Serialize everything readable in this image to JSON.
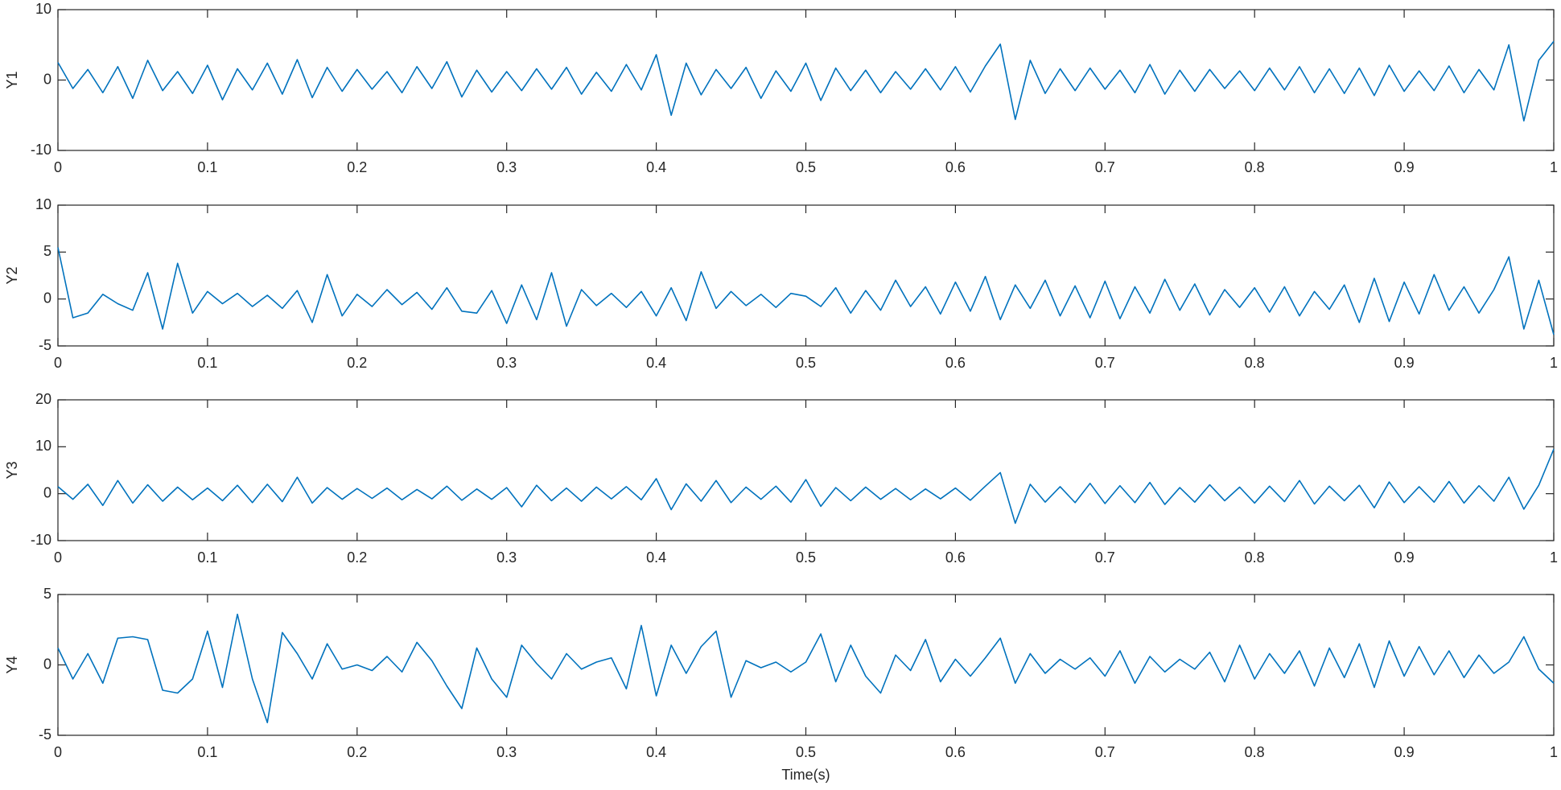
{
  "chart_data": [
    {
      "type": "line",
      "ylabel": "Y1",
      "x": [
        0,
        0.01,
        0.02,
        0.03,
        0.04,
        0.05,
        0.06,
        0.07,
        0.08,
        0.09,
        0.1,
        0.11,
        0.12,
        0.13,
        0.14,
        0.15,
        0.16,
        0.17,
        0.18,
        0.19,
        0.2,
        0.21,
        0.22,
        0.23,
        0.24,
        0.25,
        0.26,
        0.27,
        0.28,
        0.29,
        0.3,
        0.31,
        0.32,
        0.33,
        0.34,
        0.35,
        0.36,
        0.37,
        0.38,
        0.39,
        0.4,
        0.41,
        0.42,
        0.43,
        0.44,
        0.45,
        0.46,
        0.47,
        0.48,
        0.49,
        0.5,
        0.51,
        0.52,
        0.53,
        0.54,
        0.55,
        0.56,
        0.57,
        0.58,
        0.59,
        0.6,
        0.61,
        0.62,
        0.63,
        0.64,
        0.65,
        0.66,
        0.67,
        0.68,
        0.69,
        0.7,
        0.71,
        0.72,
        0.73,
        0.74,
        0.75,
        0.76,
        0.77,
        0.78,
        0.79,
        0.8,
        0.81,
        0.82,
        0.83,
        0.84,
        0.85,
        0.86,
        0.87,
        0.88,
        0.89,
        0.9,
        0.91,
        0.92,
        0.93,
        0.94,
        0.95,
        0.96,
        0.97,
        0.98,
        0.99,
        1
      ],
      "series": [
        {
          "color": "#0072bd",
          "values": [
            2.5,
            -1.2,
            1.5,
            -1.8,
            1.9,
            -2.6,
            2.8,
            -1.5,
            1.2,
            -1.9,
            2.1,
            -2.8,
            1.6,
            -1.4,
            2.4,
            -2.0,
            2.9,
            -2.5,
            1.8,
            -1.6,
            1.5,
            -1.3,
            1.2,
            -1.8,
            1.9,
            -1.2,
            2.6,
            -2.4,
            1.4,
            -1.7,
            1.2,
            -1.5,
            1.6,
            -1.3,
            1.8,
            -2.0,
            1.1,
            -1.6,
            2.2,
            -1.4,
            3.6,
            -5.0,
            2.4,
            -2.1,
            1.5,
            -1.2,
            1.8,
            -2.6,
            1.3,
            -1.6,
            2.4,
            -2.9,
            1.7,
            -1.5,
            1.4,
            -1.8,
            1.2,
            -1.3,
            1.6,
            -1.4,
            1.9,
            -1.7,
            2.0,
            5.1,
            -5.6,
            2.8,
            -1.9,
            1.6,
            -1.5,
            1.7,
            -1.3,
            1.4,
            -1.8,
            2.2,
            -2.0,
            1.4,
            -1.6,
            1.5,
            -1.2,
            1.3,
            -1.5,
            1.7,
            -1.4,
            1.9,
            -1.8,
            1.6,
            -1.9,
            1.7,
            -2.2,
            2.1,
            -1.6,
            1.3,
            -1.5,
            2.0,
            -1.8,
            1.5,
            -1.4,
            5.0,
            -5.8,
            2.8,
            5.5
          ]
        }
      ],
      "xlim": [
        0,
        1
      ],
      "xticks": [
        0,
        0.1,
        0.2,
        0.3,
        0.4,
        0.5,
        0.6,
        0.7,
        0.8,
        0.9,
        1
      ],
      "ylim": [
        -10,
        10
      ],
      "yticks": [
        -10,
        0,
        10
      ]
    },
    {
      "type": "line",
      "ylabel": "Y2",
      "x": [
        0,
        0.01,
        0.02,
        0.03,
        0.04,
        0.05,
        0.06,
        0.07,
        0.08,
        0.09,
        0.1,
        0.11,
        0.12,
        0.13,
        0.14,
        0.15,
        0.16,
        0.17,
        0.18,
        0.19,
        0.2,
        0.21,
        0.22,
        0.23,
        0.24,
        0.25,
        0.26,
        0.27,
        0.28,
        0.29,
        0.3,
        0.31,
        0.32,
        0.33,
        0.34,
        0.35,
        0.36,
        0.37,
        0.38,
        0.39,
        0.4,
        0.41,
        0.42,
        0.43,
        0.44,
        0.45,
        0.46,
        0.47,
        0.48,
        0.49,
        0.5,
        0.51,
        0.52,
        0.53,
        0.54,
        0.55,
        0.56,
        0.57,
        0.58,
        0.59,
        0.6,
        0.61,
        0.62,
        0.63,
        0.64,
        0.65,
        0.66,
        0.67,
        0.68,
        0.69,
        0.7,
        0.71,
        0.72,
        0.73,
        0.74,
        0.75,
        0.76,
        0.77,
        0.78,
        0.79,
        0.8,
        0.81,
        0.82,
        0.83,
        0.84,
        0.85,
        0.86,
        0.87,
        0.88,
        0.89,
        0.9,
        0.91,
        0.92,
        0.93,
        0.94,
        0.95,
        0.96,
        0.97,
        0.98,
        0.99,
        1
      ],
      "series": [
        {
          "color": "#0072bd",
          "values": [
            5.5,
            -2.0,
            -1.5,
            0.5,
            -0.5,
            -1.2,
            2.8,
            -3.2,
            3.8,
            -1.5,
            0.8,
            -0.5,
            0.6,
            -0.8,
            0.4,
            -1.0,
            0.9,
            -2.5,
            2.6,
            -1.8,
            0.5,
            -0.8,
            1.0,
            -0.6,
            0.7,
            -1.1,
            1.2,
            -1.3,
            -1.5,
            0.9,
            -2.6,
            1.5,
            -2.2,
            2.8,
            -2.9,
            1.0,
            -0.7,
            0.6,
            -0.9,
            0.8,
            -1.8,
            1.2,
            -2.3,
            2.9,
            -1.0,
            0.8,
            -0.7,
            0.5,
            -0.9,
            0.6,
            0.3,
            -0.8,
            1.2,
            -1.5,
            0.9,
            -1.2,
            2.0,
            -0.8,
            1.3,
            -1.6,
            1.8,
            -1.3,
            2.4,
            -2.2,
            1.5,
            -1.0,
            2.0,
            -1.8,
            1.4,
            -2.0,
            1.9,
            -2.1,
            1.3,
            -1.5,
            2.1,
            -1.2,
            1.6,
            -1.7,
            1.0,
            -0.9,
            1.2,
            -1.4,
            1.3,
            -1.8,
            0.8,
            -1.1,
            1.5,
            -2.5,
            2.2,
            -2.4,
            1.8,
            -1.6,
            2.6,
            -1.2,
            1.3,
            -1.5,
            1.0,
            4.5,
            -3.2,
            2.0,
            -3.8
          ]
        }
      ],
      "xlim": [
        0,
        1
      ],
      "xticks": [
        0,
        0.1,
        0.2,
        0.3,
        0.4,
        0.5,
        0.6,
        0.7,
        0.8,
        0.9,
        1
      ],
      "ylim": [
        -5,
        10
      ],
      "yticks": [
        -5,
        0,
        5,
        10
      ]
    },
    {
      "type": "line",
      "ylabel": "Y3",
      "x": [
        0,
        0.01,
        0.02,
        0.03,
        0.04,
        0.05,
        0.06,
        0.07,
        0.08,
        0.09,
        0.1,
        0.11,
        0.12,
        0.13,
        0.14,
        0.15,
        0.16,
        0.17,
        0.18,
        0.19,
        0.2,
        0.21,
        0.22,
        0.23,
        0.24,
        0.25,
        0.26,
        0.27,
        0.28,
        0.29,
        0.3,
        0.31,
        0.32,
        0.33,
        0.34,
        0.35,
        0.36,
        0.37,
        0.38,
        0.39,
        0.4,
        0.41,
        0.42,
        0.43,
        0.44,
        0.45,
        0.46,
        0.47,
        0.48,
        0.49,
        0.5,
        0.51,
        0.52,
        0.53,
        0.54,
        0.55,
        0.56,
        0.57,
        0.58,
        0.59,
        0.6,
        0.61,
        0.62,
        0.63,
        0.64,
        0.65,
        0.66,
        0.67,
        0.68,
        0.69,
        0.7,
        0.71,
        0.72,
        0.73,
        0.74,
        0.75,
        0.76,
        0.77,
        0.78,
        0.79,
        0.8,
        0.81,
        0.82,
        0.83,
        0.84,
        0.85,
        0.86,
        0.87,
        0.88,
        0.89,
        0.9,
        0.91,
        0.92,
        0.93,
        0.94,
        0.95,
        0.96,
        0.97,
        0.98,
        0.99,
        1
      ],
      "series": [
        {
          "color": "#0072bd",
          "values": [
            1.5,
            -1.2,
            2.0,
            -2.5,
            2.8,
            -2.0,
            1.9,
            -1.6,
            1.4,
            -1.3,
            1.2,
            -1.5,
            1.8,
            -1.9,
            2.0,
            -1.7,
            3.5,
            -2.0,
            1.3,
            -1.2,
            1.1,
            -1.0,
            1.2,
            -1.3,
            0.9,
            -1.1,
            1.6,
            -1.4,
            1.0,
            -1.2,
            1.3,
            -2.8,
            1.8,
            -1.5,
            1.2,
            -1.6,
            1.4,
            -1.1,
            1.5,
            -1.3,
            3.2,
            -3.4,
            2.1,
            -1.6,
            2.8,
            -1.9,
            1.4,
            -1.2,
            1.6,
            -1.8,
            3.0,
            -2.7,
            1.3,
            -1.5,
            1.4,
            -1.2,
            1.1,
            -1.3,
            1.0,
            -1.1,
            1.2,
            -1.4,
            1.6,
            4.5,
            -6.3,
            2.0,
            -1.8,
            1.5,
            -1.9,
            2.2,
            -2.1,
            1.7,
            -1.9,
            2.4,
            -2.3,
            1.3,
            -1.8,
            1.9,
            -1.5,
            1.4,
            -2.0,
            1.6,
            -1.7,
            2.8,
            -2.2,
            1.6,
            -1.5,
            1.8,
            -3.0,
            2.5,
            -1.9,
            1.5,
            -1.8,
            2.6,
            -2.0,
            1.7,
            -1.6,
            3.5,
            -3.3,
            1.8,
            9.5
          ]
        }
      ],
      "xlim": [
        0,
        1
      ],
      "xticks": [
        0,
        0.1,
        0.2,
        0.3,
        0.4,
        0.5,
        0.6,
        0.7,
        0.8,
        0.9,
        1
      ],
      "ylim": [
        -10,
        20
      ],
      "yticks": [
        -10,
        0,
        10,
        20
      ]
    },
    {
      "type": "line",
      "ylabel": "Y4",
      "xlabel": "Time(s)",
      "x": [
        0,
        0.01,
        0.02,
        0.03,
        0.04,
        0.05,
        0.06,
        0.07,
        0.08,
        0.09,
        0.1,
        0.11,
        0.12,
        0.13,
        0.14,
        0.15,
        0.16,
        0.17,
        0.18,
        0.19,
        0.2,
        0.21,
        0.22,
        0.23,
        0.24,
        0.25,
        0.26,
        0.27,
        0.28,
        0.29,
        0.3,
        0.31,
        0.32,
        0.33,
        0.34,
        0.35,
        0.36,
        0.37,
        0.38,
        0.39,
        0.4,
        0.41,
        0.42,
        0.43,
        0.44,
        0.45,
        0.46,
        0.47,
        0.48,
        0.49,
        0.5,
        0.51,
        0.52,
        0.53,
        0.54,
        0.55,
        0.56,
        0.57,
        0.58,
        0.59,
        0.6,
        0.61,
        0.62,
        0.63,
        0.64,
        0.65,
        0.66,
        0.67,
        0.68,
        0.69,
        0.7,
        0.71,
        0.72,
        0.73,
        0.74,
        0.75,
        0.76,
        0.77,
        0.78,
        0.79,
        0.8,
        0.81,
        0.82,
        0.83,
        0.84,
        0.85,
        0.86,
        0.87,
        0.88,
        0.89,
        0.9,
        0.91,
        0.92,
        0.93,
        0.94,
        0.95,
        0.96,
        0.97,
        0.98,
        0.99,
        1
      ],
      "series": [
        {
          "color": "#0072bd",
          "values": [
            1.2,
            -1.0,
            0.8,
            -1.3,
            1.9,
            2.0,
            1.8,
            -1.8,
            -2.0,
            -1.0,
            2.4,
            -1.6,
            3.6,
            -1.0,
            -4.1,
            2.3,
            0.8,
            -1.0,
            1.5,
            -0.3,
            0.0,
            -0.4,
            0.6,
            -0.5,
            1.6,
            0.3,
            -1.5,
            -3.1,
            1.2,
            -1.0,
            -2.3,
            1.4,
            0.1,
            -1.0,
            0.8,
            -0.3,
            0.2,
            0.5,
            -1.7,
            2.8,
            -2.2,
            1.4,
            -0.6,
            1.3,
            2.4,
            -2.3,
            0.3,
            -0.2,
            0.2,
            -0.5,
            0.2,
            2.2,
            -1.2,
            1.4,
            -0.8,
            -2.0,
            0.7,
            -0.4,
            1.8,
            -1.2,
            0.4,
            -0.8,
            0.5,
            1.9,
            -1.3,
            0.8,
            -0.6,
            0.4,
            -0.3,
            0.5,
            -0.8,
            1.0,
            -1.3,
            0.6,
            -0.5,
            0.4,
            -0.3,
            0.9,
            -1.2,
            1.4,
            -1.0,
            0.8,
            -0.6,
            1.0,
            -1.5,
            1.2,
            -0.9,
            1.5,
            -1.6,
            1.7,
            -0.8,
            1.3,
            -0.7,
            1.0,
            -0.9,
            0.7,
            -0.6,
            0.2,
            2.0,
            -0.3,
            -1.3
          ]
        }
      ],
      "xlim": [
        0,
        1
      ],
      "xticks": [
        0,
        0.1,
        0.2,
        0.3,
        0.4,
        0.5,
        0.6,
        0.7,
        0.8,
        0.9,
        1
      ],
      "ylim": [
        -5,
        5
      ],
      "yticks": [
        -5,
        0,
        5
      ]
    }
  ]
}
